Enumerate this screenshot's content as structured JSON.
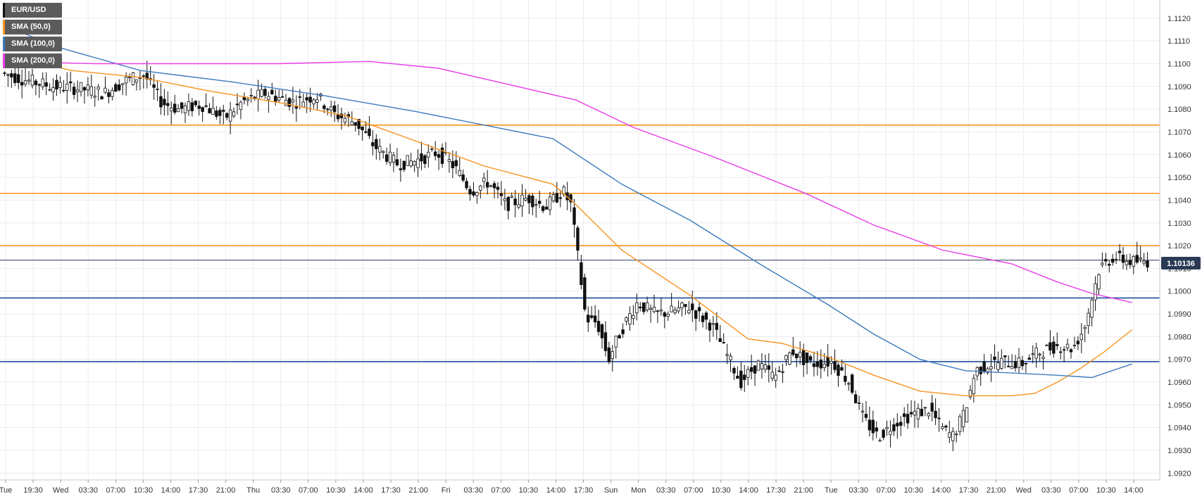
{
  "chart_data": {
    "type": "candlestick",
    "symbol": "EUR/USD",
    "last_price_label": "1.10136",
    "last_price": 1.10136,
    "ylim": [
      1.0917,
      1.1128
    ],
    "y_ticks": [
      "1.1120",
      "1.1110",
      "1.1100",
      "1.1090",
      "1.1080",
      "1.1070",
      "1.1060",
      "1.1050",
      "1.1040",
      "1.1030",
      "1.1020",
      "1.1010",
      "1.1000",
      "1.0990",
      "1.0980",
      "1.0970",
      "1.0960",
      "1.0950",
      "1.0940",
      "1.0930",
      "1.0920"
    ],
    "x_ticks": [
      "Tue",
      "19:30",
      "Wed",
      "03:30",
      "07:00",
      "10:30",
      "14:00",
      "17:30",
      "21:00",
      "Thu",
      "03:30",
      "07:00",
      "10:30",
      "14:00",
      "17:30",
      "21:00",
      "Fri",
      "03:30",
      "07:00",
      "10:30",
      "14:00",
      "17:30",
      "Sun",
      "Mon",
      "03:30",
      "07:00",
      "10:30",
      "14:00",
      "17:30",
      "21:00",
      "Tue",
      "03:30",
      "07:00",
      "10:30",
      "14:00",
      "17:30",
      "21:00",
      "Wed",
      "03:30",
      "07:00",
      "10:30",
      "14:00"
    ],
    "legend": [
      {
        "label": "EUR/USD",
        "color": "#111111"
      },
      {
        "label": "SMA (50,0)",
        "color": "#f7931e"
      },
      {
        "label": "SMA (100,0)",
        "color": "#3d7abf"
      },
      {
        "label": "SMA (200,0)",
        "color": "#e83de8"
      }
    ],
    "resistance_levels": [
      1.1073,
      1.1043,
      1.102
    ],
    "support_levels": [
      1.0997,
      1.0969
    ],
    "colors": {
      "resistance": "#f7931e",
      "support": "#1f4e9c",
      "last_price": "#2a3a55",
      "up": "#ffffff",
      "down": "#111111"
    },
    "sma50": [
      [
        0,
        1.1104
      ],
      [
        0.06,
        1.1097
      ],
      [
        0.12,
        1.1094
      ],
      [
        0.18,
        1.1088
      ],
      [
        0.24,
        1.1083
      ],
      [
        0.3,
        1.1077
      ],
      [
        0.36,
        1.1066
      ],
      [
        0.42,
        1.1055
      ],
      [
        0.48,
        1.1047
      ],
      [
        0.5,
        1.1038
      ],
      [
        0.54,
        1.1018
      ],
      [
        0.6,
        1.0998
      ],
      [
        0.65,
        1.0979
      ],
      [
        0.68,
        1.0977
      ],
      [
        0.72,
        1.0971
      ],
      [
        0.76,
        1.0963
      ],
      [
        0.8,
        1.0956
      ],
      [
        0.84,
        1.0954
      ],
      [
        0.88,
        1.0954
      ],
      [
        0.9,
        1.0955
      ],
      [
        0.92,
        1.096
      ],
      [
        0.94,
        1.0966
      ],
      [
        0.96,
        1.0973
      ],
      [
        0.985,
        1.0983
      ]
    ],
    "sma100": [
      [
        0,
        1.1117
      ],
      [
        0.05,
        1.1107
      ],
      [
        0.12,
        1.1097
      ],
      [
        0.2,
        1.1092
      ],
      [
        0.28,
        1.1086
      ],
      [
        0.36,
        1.1079
      ],
      [
        0.42,
        1.1073
      ],
      [
        0.48,
        1.1067
      ],
      [
        0.54,
        1.1047
      ],
      [
        0.6,
        1.1031
      ],
      [
        0.66,
        1.1012
      ],
      [
        0.72,
        1.0994
      ],
      [
        0.76,
        1.0981
      ],
      [
        0.8,
        1.097
      ],
      [
        0.84,
        1.0965
      ],
      [
        0.88,
        1.0964
      ],
      [
        0.92,
        1.0963
      ],
      [
        0.95,
        1.0962
      ],
      [
        0.985,
        1.0968
      ]
    ],
    "sma200": [
      [
        0,
        1.1101
      ],
      [
        0.08,
        1.11
      ],
      [
        0.16,
        1.11
      ],
      [
        0.24,
        1.11
      ],
      [
        0.32,
        1.1101
      ],
      [
        0.38,
        1.1098
      ],
      [
        0.44,
        1.1091
      ],
      [
        0.5,
        1.1084
      ],
      [
        0.55,
        1.1072
      ],
      [
        0.62,
        1.1059
      ],
      [
        0.7,
        1.1043
      ],
      [
        0.76,
        1.1029
      ],
      [
        0.82,
        1.1018
      ],
      [
        0.88,
        1.1012
      ],
      [
        0.92,
        1.1004
      ],
      [
        0.95,
        1.0999
      ],
      [
        0.985,
        1.0995
      ]
    ]
  }
}
